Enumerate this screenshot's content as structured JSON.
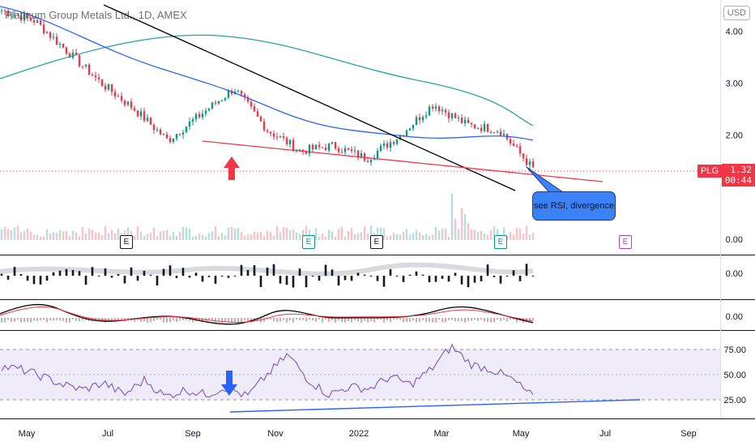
{
  "title": "Platinum Group Metals Ltd., 1D, AMEX",
  "currency": "USD",
  "symbol": "PLG",
  "last_price": "1.32",
  "countdown": "00:44",
  "annotation": "see RSI, divergence",
  "earnings_marker": "E",
  "x_axis": [
    "May",
    "Jul",
    "Sep",
    "Nov",
    "2022",
    "Mar",
    "May",
    "Jul",
    "Sep"
  ],
  "price_axis": [
    "4.00",
    "3.00",
    "2.00",
    "0.00"
  ],
  "osc1_axis": [
    "0.00"
  ],
  "osc2_axis": [
    "0.00"
  ],
  "rsi_axis": [
    "75.00",
    "50.00",
    "25.00"
  ],
  "colors": {
    "up": "#089981",
    "down": "#f23645",
    "ma1": "#26a69a",
    "ma2": "#2962ff",
    "rsi": "#7e57c2",
    "trend": "#000000",
    "support": "#f23645"
  },
  "chart_data": {
    "type": "line",
    "ylim": [
      0,
      4.6
    ],
    "series": [
      {
        "values": [
          4.4,
          4.2,
          3.6,
          3.0,
          2.5,
          1.9,
          2.4,
          2.9,
          2.1,
          1.7,
          1.8,
          1.55,
          2.0,
          2.6,
          2.2,
          2.1,
          1.35
        ]
      }
    ],
    "rsi_ylim": [
      15,
      85
    ]
  }
}
